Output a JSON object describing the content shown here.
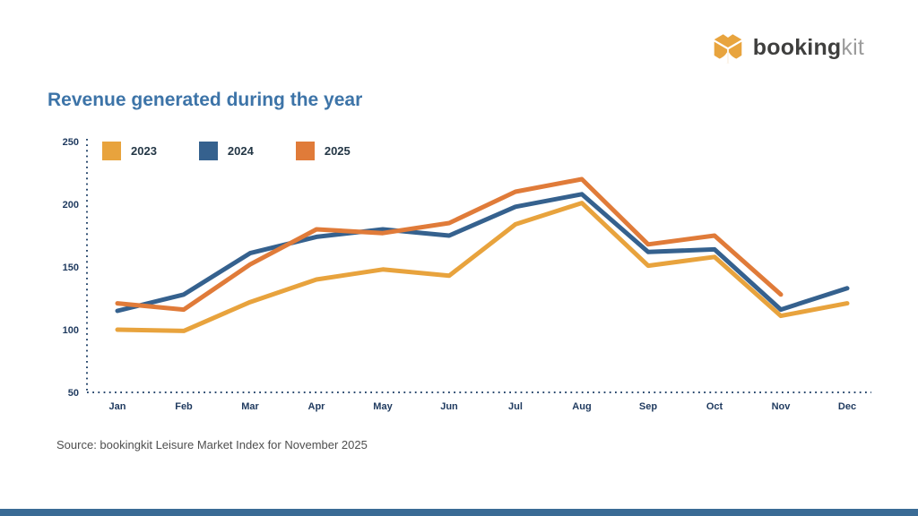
{
  "logo": {
    "brand_bold": "booking",
    "brand_light": "kit",
    "icon_color": "#e8a43e"
  },
  "header": {
    "title": "Revenue generated during the year"
  },
  "footer": {
    "source": "Source: bookingkit Leisure Market Index for November 2025"
  },
  "chart_data": {
    "type": "line",
    "title": "Revenue generated during the year",
    "categories": [
      "Jan",
      "Feb",
      "Mar",
      "Apr",
      "May",
      "Jun",
      "Jul",
      "Aug",
      "Sep",
      "Oct",
      "Nov",
      "Dec"
    ],
    "series": [
      {
        "name": "2023",
        "color": "#e8a33d",
        "values": [
          100,
          99,
          122,
          140,
          148,
          143,
          184,
          201,
          151,
          158,
          111,
          121
        ]
      },
      {
        "name": "2024",
        "color": "#35618e",
        "values": [
          115,
          128,
          161,
          174,
          180,
          175,
          198,
          208,
          162,
          164,
          116,
          133
        ]
      },
      {
        "name": "2025",
        "color": "#e07b39",
        "values": [
          121,
          116,
          152,
          180,
          177,
          185,
          210,
          220,
          168,
          175,
          128,
          null
        ]
      }
    ],
    "xlabel": "",
    "ylabel": "",
    "ylim": [
      50,
      250
    ],
    "yticks": [
      50,
      100,
      150,
      200,
      250
    ],
    "grid": "off",
    "axis_style": "dotted",
    "legend_position": "top-left"
  },
  "colors": {
    "title_text": "#3d74a8",
    "axis_text": "#1f3a5f",
    "axis_dots": "#2b4a6f",
    "source_text": "#4f4f4f",
    "footer_bar": "#3a6b95",
    "background": "#ffffff"
  }
}
